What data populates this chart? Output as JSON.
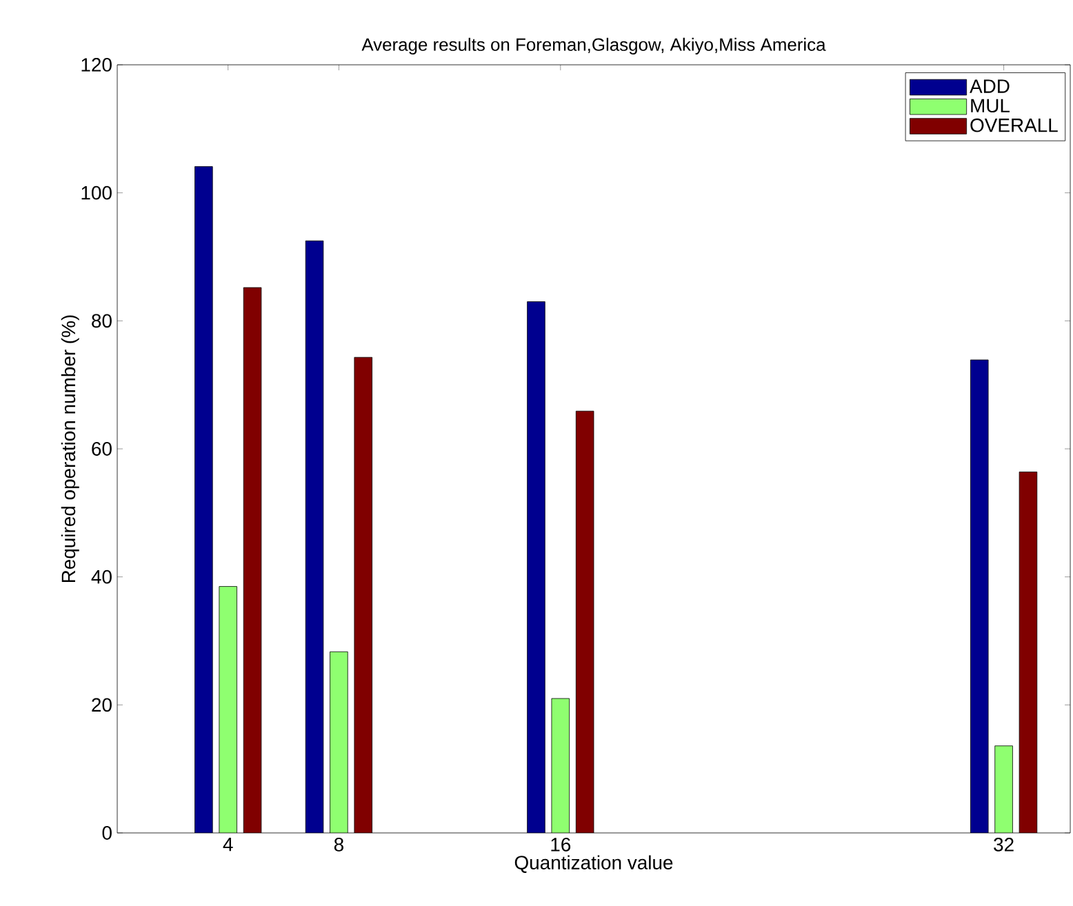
{
  "chart_data": {
    "type": "bar",
    "title": "Average results on Foreman,Glasgow, Akiyo,Miss America",
    "xlabel": "Quantization value",
    "ylabel": "Required operation number (%)",
    "x": [
      4,
      8,
      16,
      32
    ],
    "series": [
      {
        "name": "ADD",
        "color": "#00008f",
        "values": [
          104.1,
          92.5,
          83.0,
          73.9
        ]
      },
      {
        "name": "MUL",
        "color": "#8fff70",
        "values": [
          38.5,
          28.3,
          21.0,
          13.6
        ]
      },
      {
        "name": "OVERALL",
        "color": "#800000",
        "values": [
          85.2,
          74.3,
          65.9,
          56.4
        ]
      }
    ],
    "xlim": [
      0,
      34.4
    ],
    "xticks": [
      4,
      8,
      16,
      32
    ],
    "ylim": [
      0,
      120
    ],
    "yticks": [
      0,
      20,
      40,
      60,
      80,
      100,
      120
    ],
    "grid": false,
    "legend": "top right"
  }
}
